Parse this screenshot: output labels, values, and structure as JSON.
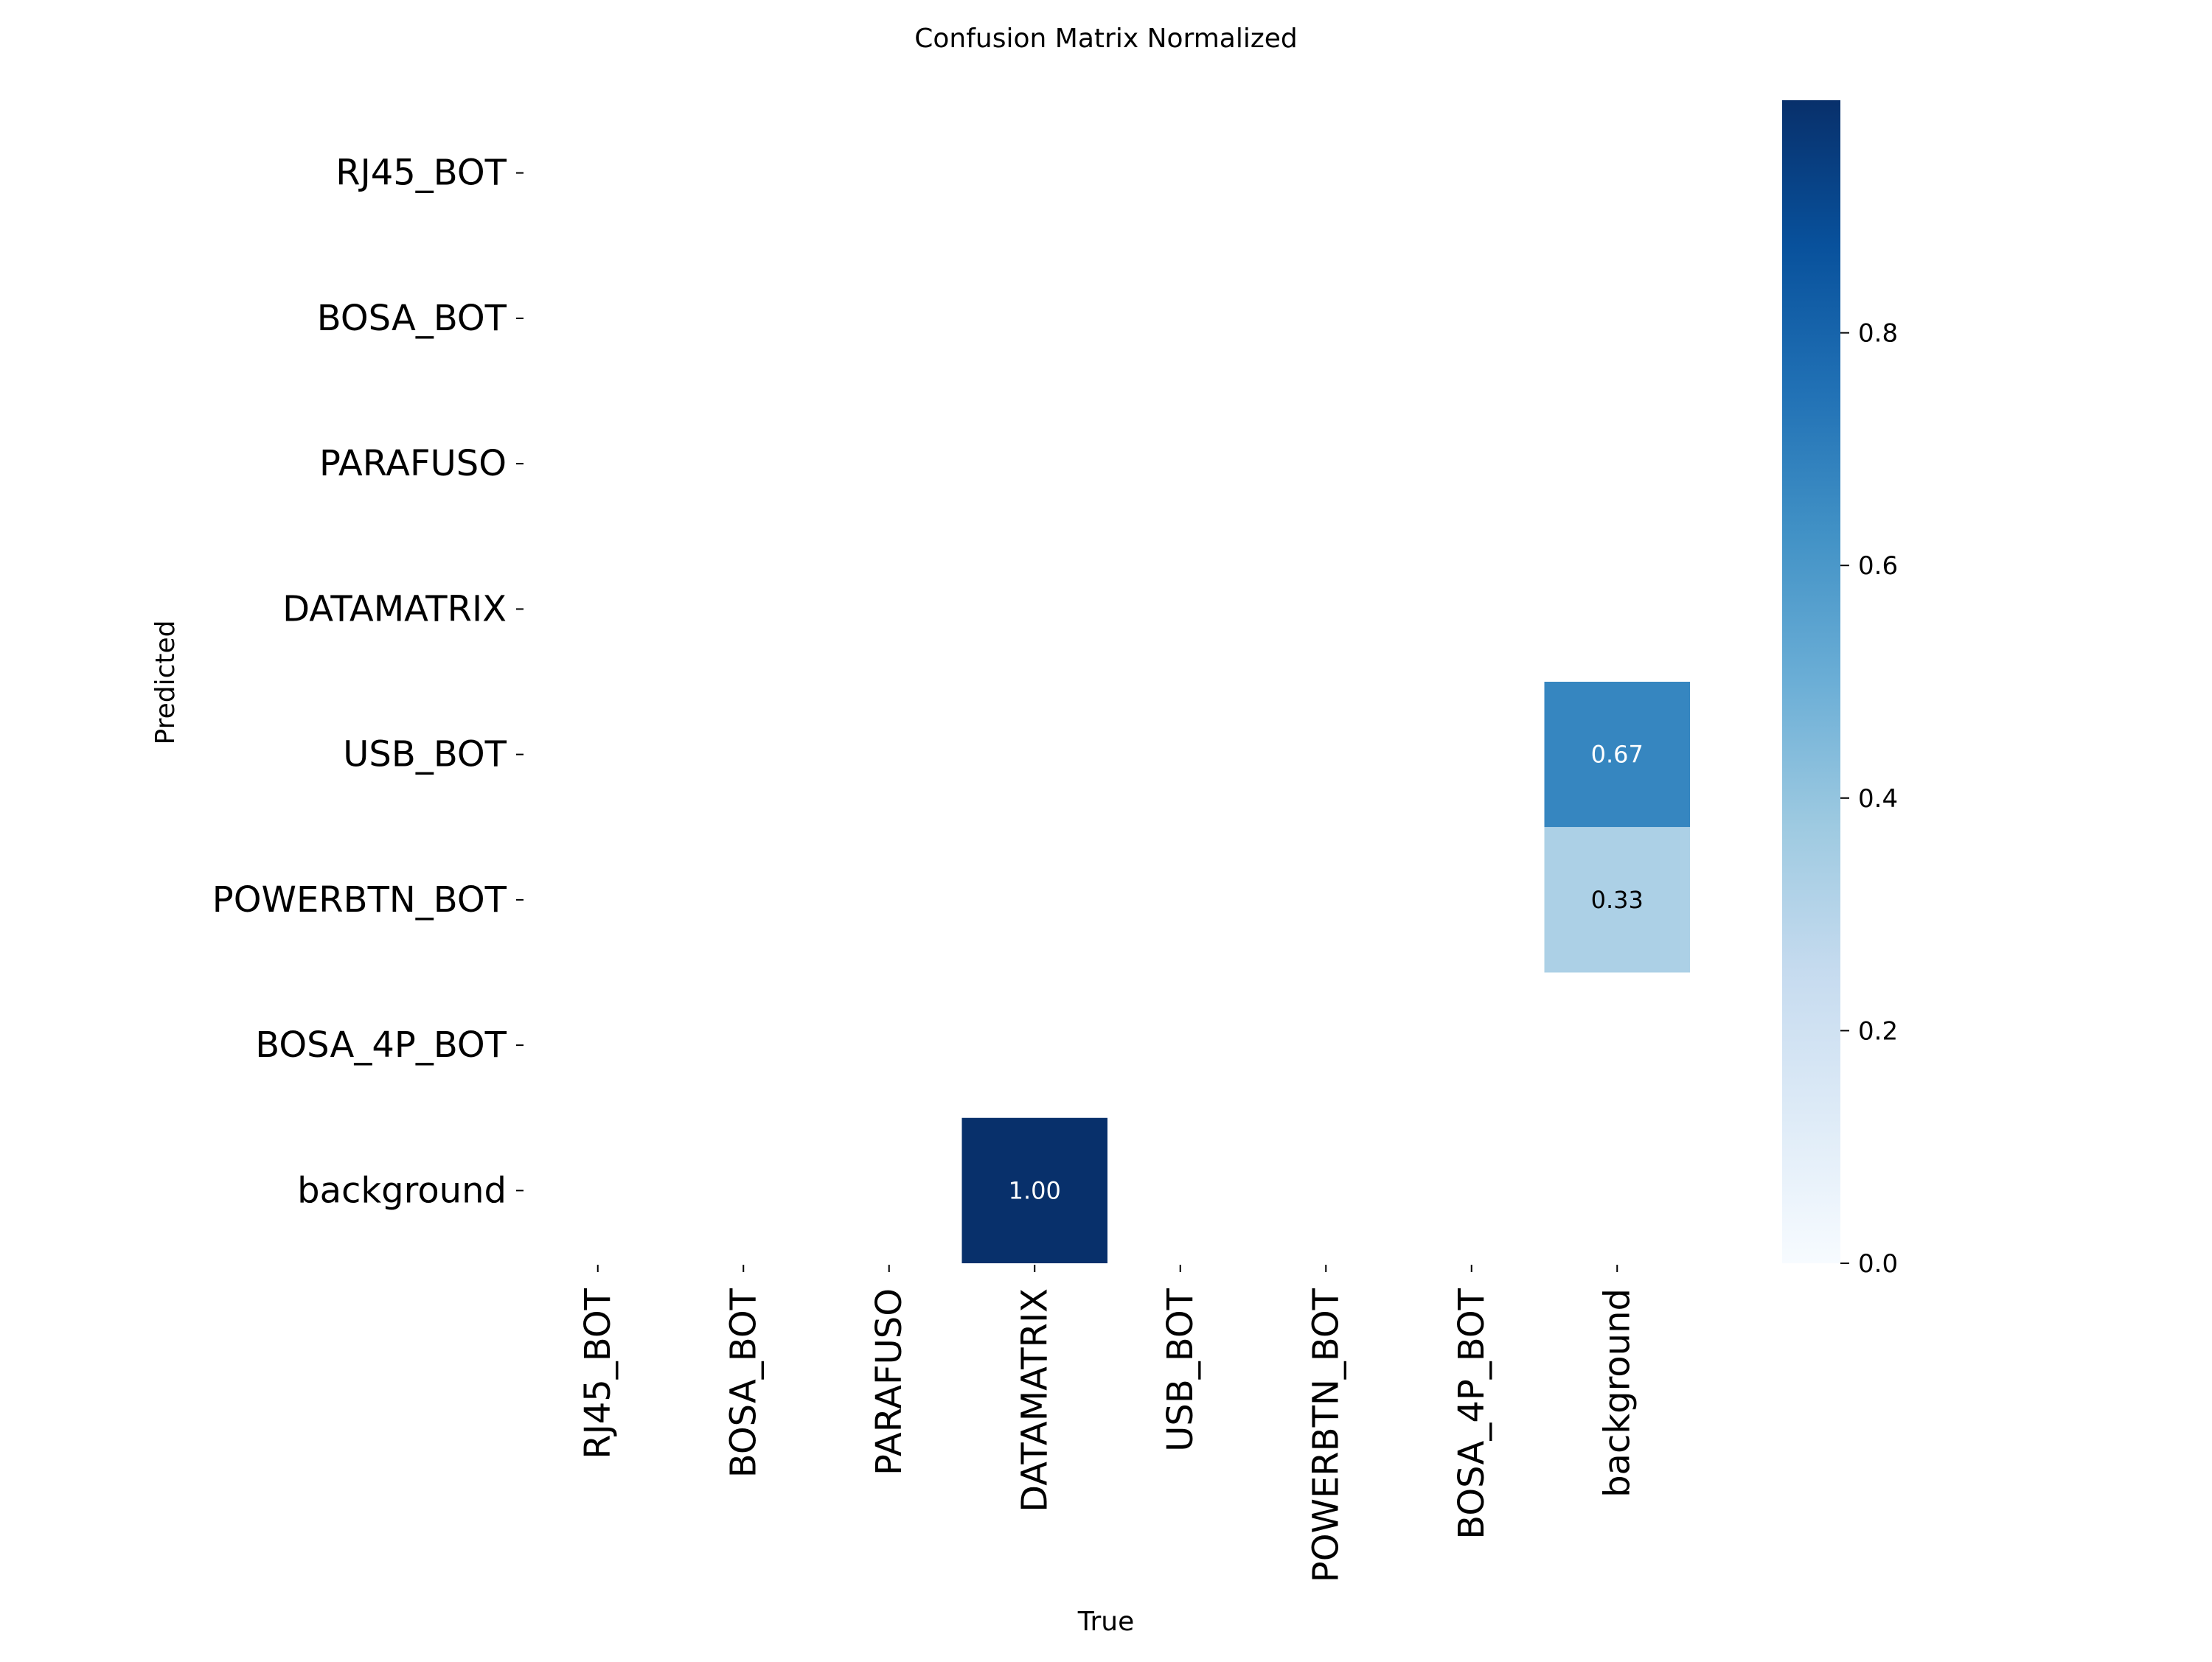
{
  "chart_data": {
    "type": "heatmap",
    "title": "Confusion Matrix Normalized",
    "xlabel": "True",
    "ylabel": "Predicted",
    "x_categories": [
      "RJ45_BOT",
      "BOSA_BOT",
      "PARAFUSO",
      "DATAMATRIX",
      "USB_BOT",
      "POWERBTN_BOT",
      "BOSA_4P_BOT",
      "background"
    ],
    "y_categories": [
      "RJ45_BOT",
      "BOSA_BOT",
      "PARAFUSO",
      "DATAMATRIX",
      "USB_BOT",
      "POWERBTN_BOT",
      "BOSA_4P_BOT",
      "background"
    ],
    "cells": [
      {
        "true": "background",
        "predicted": "USB_BOT",
        "value": 0.67,
        "label": "0.67"
      },
      {
        "true": "background",
        "predicted": "POWERBTN_BOT",
        "value": 0.33,
        "label": "0.33"
      },
      {
        "true": "DATAMATRIX",
        "predicted": "background",
        "value": 1.0,
        "label": "1.00"
      }
    ],
    "empty_cells_shown_blank": true,
    "colormap": "Blues",
    "colormap_stops": [
      "#f7fbff",
      "#deebf7",
      "#c6dbef",
      "#9ecae1",
      "#6baed6",
      "#4292c6",
      "#2171b5",
      "#08519c",
      "#08306b"
    ],
    "colorbar": {
      "range": [
        0,
        1
      ],
      "ticks": [
        0.0,
        0.2,
        0.4,
        0.6,
        0.8
      ],
      "tick_labels": [
        "0.0",
        "0.2",
        "0.4",
        "0.6",
        "0.8"
      ]
    },
    "grid": false
  }
}
